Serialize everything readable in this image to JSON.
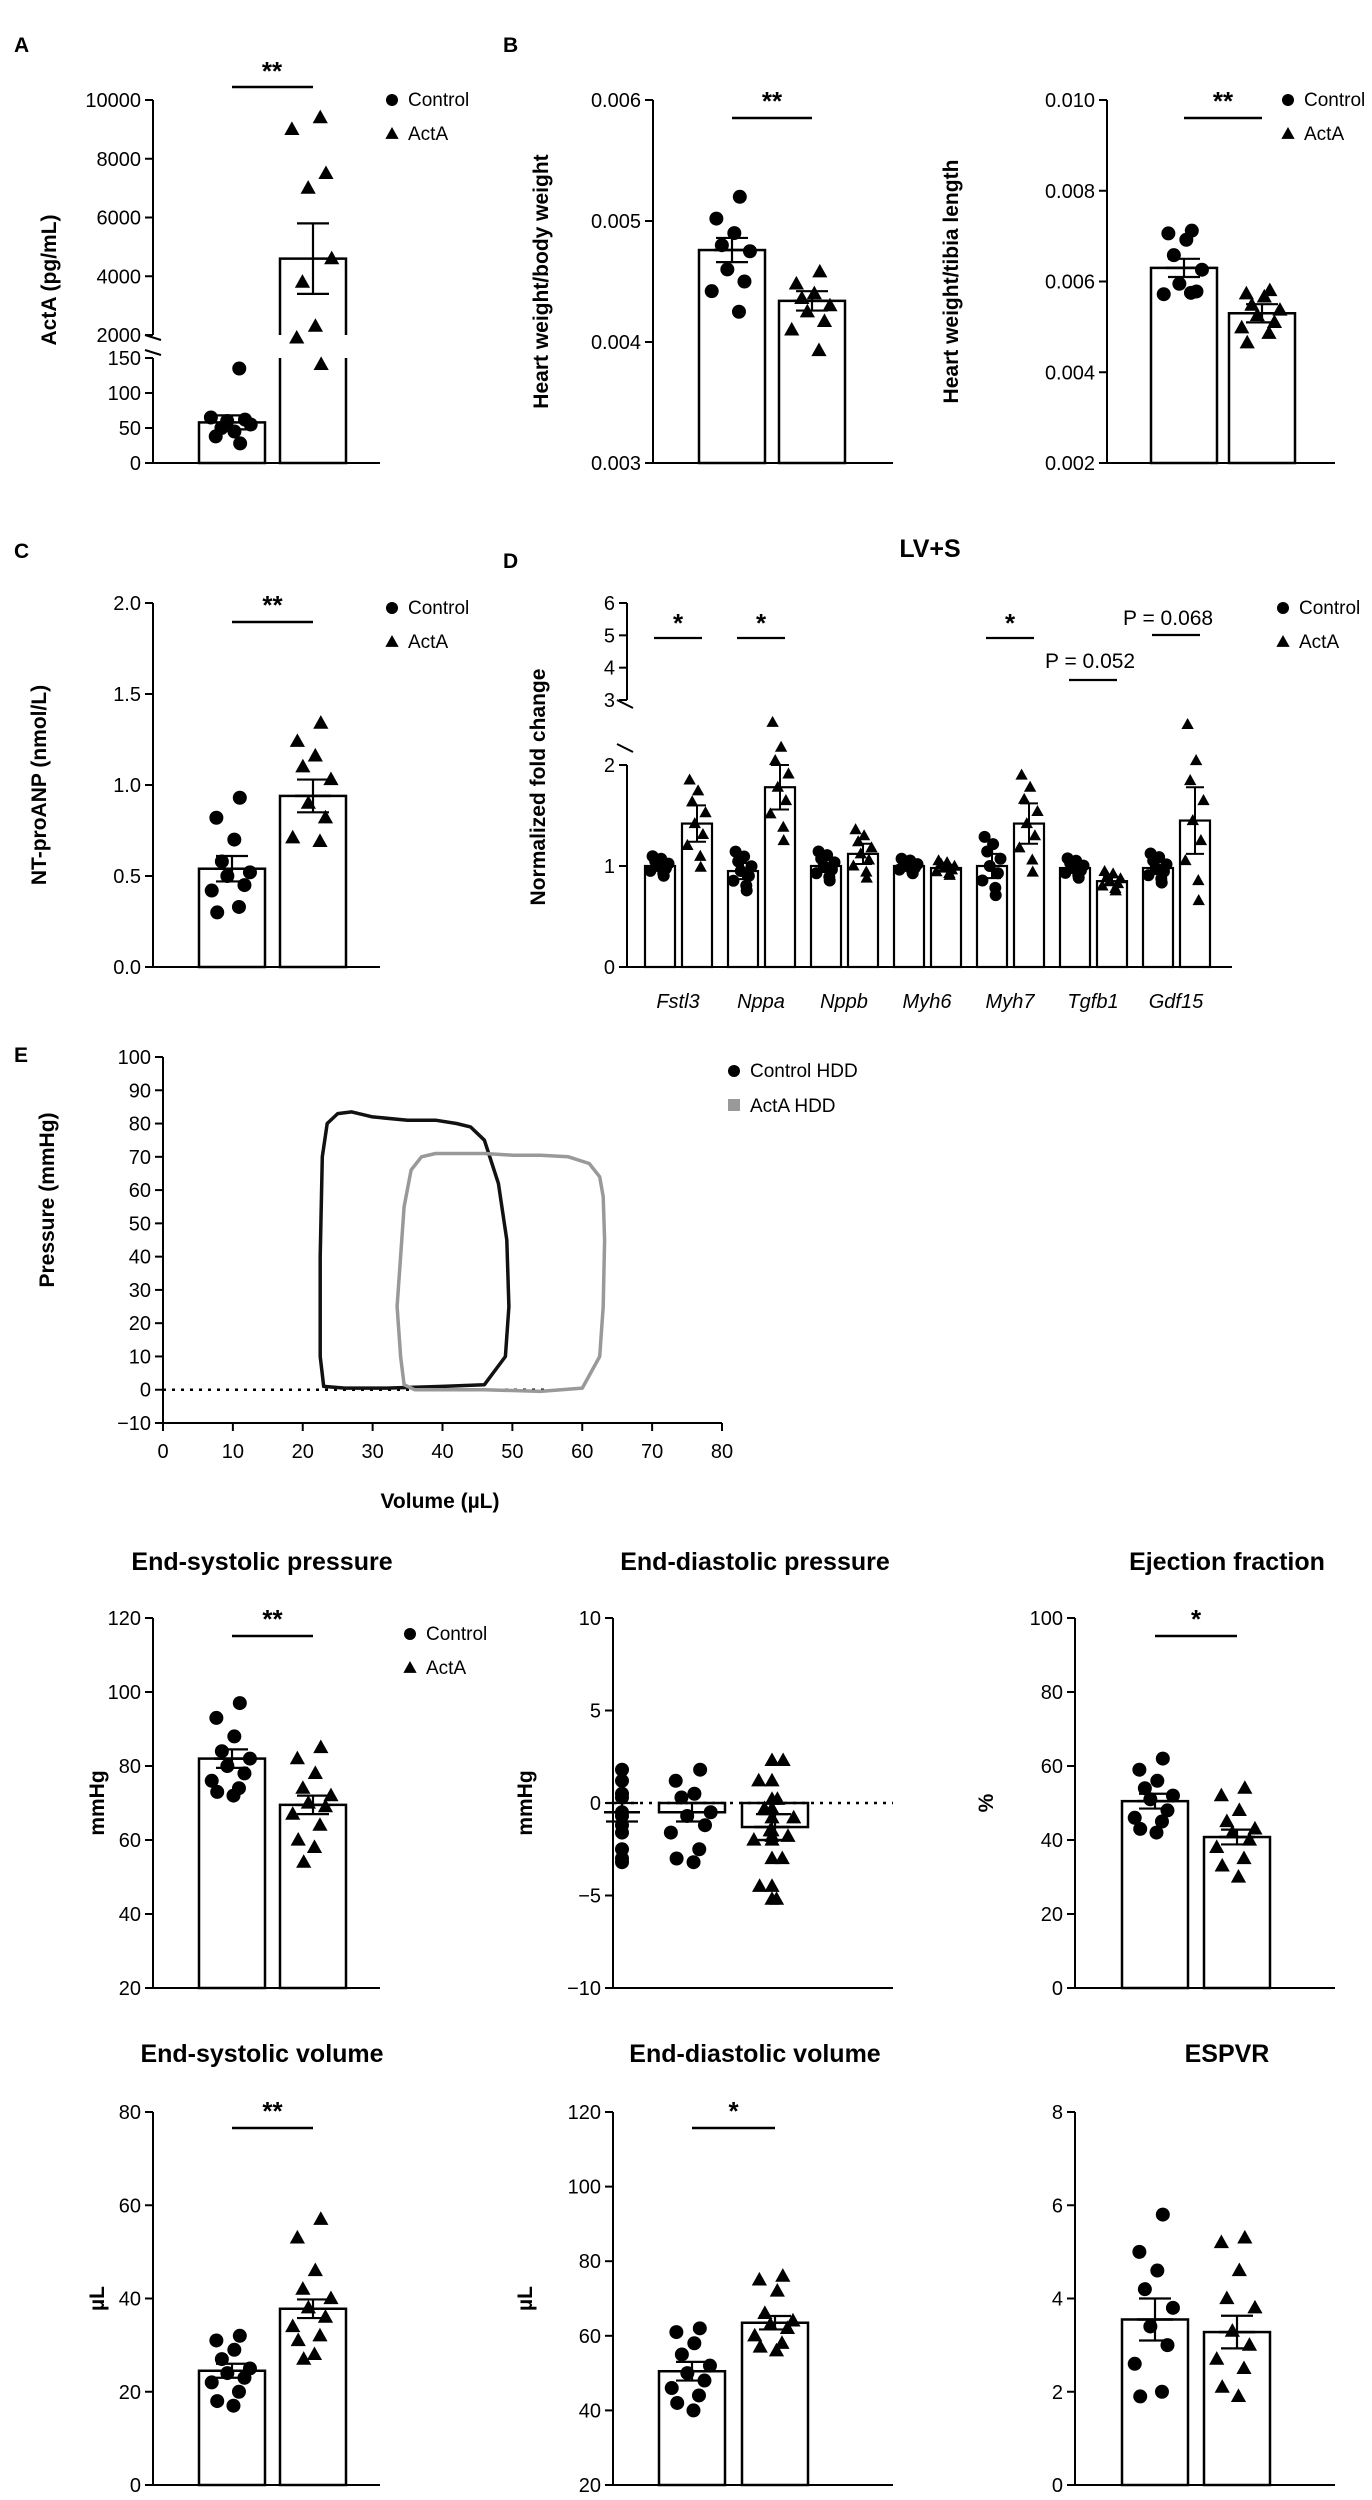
{
  "figure": {
    "background": "#ffffff",
    "ink": "#000000",
    "gray": "#999999"
  },
  "chart_data": [
    {
      "id": "A",
      "panel_label": "A",
      "type": "bar",
      "ylabel": "ActA (pg/mL)",
      "ylim": [
        0,
        10000
      ],
      "axis_break": true,
      "yticks_lower": [
        "0",
        "50",
        "100",
        "150"
      ],
      "yticks_upper": [
        "2000",
        "4000",
        "6000",
        "8000",
        "10000"
      ],
      "categories": [
        "Control",
        "ActA"
      ],
      "series": [
        {
          "name": "Control",
          "marker": "circle",
          "mean": 58,
          "sem": 10,
          "points": [
            28,
            38,
            45,
            50,
            55,
            60,
            62,
            65,
            135
          ]
        },
        {
          "name": "ActA",
          "marker": "triangle",
          "mean": 4600,
          "sem": 1200,
          "points": [
            1000,
            1900,
            2300,
            3800,
            4600,
            7000,
            7500,
            9000,
            9400
          ]
        }
      ],
      "significance": "**",
      "legend": [
        "Control",
        "ActA"
      ]
    },
    {
      "id": "B1",
      "panel_label": "B",
      "type": "bar",
      "ylabel": "Heart weight/body weight",
      "ylim": [
        0.003,
        0.006
      ],
      "yticks": [
        "0.003",
        "0.004",
        "0.005",
        "0.006"
      ],
      "categories": [
        "Control",
        "ActA"
      ],
      "series": [
        {
          "name": "Control",
          "marker": "circle",
          "mean": 0.00476,
          "sem": 0.0001,
          "points": [
            0.0052,
            0.00502,
            0.0049,
            0.0048,
            0.00475,
            0.0046,
            0.0045,
            0.00442,
            0.00425
          ]
        },
        {
          "name": "ActA",
          "marker": "triangle",
          "mean": 0.00434,
          "sem": 8e-05,
          "points": [
            0.00458,
            0.00448,
            0.0044,
            0.00436,
            0.0043,
            0.00425,
            0.00417,
            0.0041,
            0.00393
          ]
        }
      ],
      "significance": "**"
    },
    {
      "id": "B2",
      "panel_label": "",
      "type": "bar",
      "ylabel": "Heart weight/tibia length",
      "ylim": [
        0.002,
        0.01
      ],
      "yticks": [
        "0.002",
        "0.004",
        "0.006",
        "0.008",
        "0.010"
      ],
      "categories": [
        "Control",
        "ActA"
      ],
      "series": [
        {
          "name": "Control",
          "marker": "circle",
          "mean": 0.0063,
          "sem": 0.0002,
          "points": [
            0.00712,
            0.00706,
            0.00692,
            0.00658,
            0.00626,
            0.00595,
            0.00578,
            0.00572,
            0.00575
          ]
        },
        {
          "name": "ActA",
          "marker": "triangle",
          "mean": 0.0053,
          "sem": 0.0002,
          "points": [
            0.0058,
            0.00573,
            0.00566,
            0.00548,
            0.00537,
            0.00525,
            0.0051,
            0.00498,
            0.00486,
            0.00465
          ]
        }
      ],
      "significance": "**",
      "legend": [
        "Control",
        "ActA"
      ]
    },
    {
      "id": "C",
      "panel_label": "C",
      "type": "bar",
      "ylabel": "NT-proANP (nmol/L)",
      "ylim": [
        0,
        2
      ],
      "yticks": [
        "0.0",
        "0.5",
        "1.0",
        "1.5",
        "2.0"
      ],
      "categories": [
        "Control",
        "ActA"
      ],
      "series": [
        {
          "name": "Control",
          "marker": "circle",
          "mean": 0.54,
          "sem": 0.07,
          "points": [
            0.93,
            0.82,
            0.7,
            0.58,
            0.52,
            0.5,
            0.45,
            0.42,
            0.33,
            0.3
          ]
        },
        {
          "name": "ActA",
          "marker": "triangle",
          "mean": 0.94,
          "sem": 0.09,
          "points": [
            1.34,
            1.24,
            1.16,
            1.1,
            1.03,
            0.9,
            0.82,
            0.71,
            0.69
          ]
        }
      ],
      "significance": "**",
      "legend": [
        "Control",
        "ActA"
      ]
    },
    {
      "id": "D",
      "panel_label": "D",
      "type": "bar",
      "title": "LV+S",
      "ylabel": "Normalized fold change",
      "ylim": [
        0,
        6
      ],
      "axis_break": true,
      "yticks_lower": [
        "0",
        "1",
        "2"
      ],
      "yticks_upper": [
        "3",
        "4",
        "5",
        "6"
      ],
      "categories": [
        "Fstl3",
        "Nppa",
        "Nppb",
        "Myh6",
        "Myh7",
        "Tgfb1",
        "Gdf15"
      ],
      "series": [
        {
          "name": "Control",
          "marker": "circle",
          "values": [
            1.0,
            0.95,
            1.0,
            1.0,
            1.0,
            0.98,
            0.98
          ],
          "sem": [
            0.04,
            0.08,
            0.06,
            0.03,
            0.12,
            0.04,
            0.06
          ]
        },
        {
          "name": "ActA",
          "marker": "triangle",
          "values": [
            1.42,
            1.78,
            1.12,
            0.98,
            1.42,
            0.85,
            1.45
          ],
          "sem": [
            0.18,
            0.22,
            0.1,
            0.03,
            0.2,
            0.04,
            0.33
          ]
        }
      ],
      "annotations": [
        "*",
        "*",
        "*",
        "P = 0.052",
        "P = 0.068"
      ],
      "legend": [
        "Control",
        "ActA"
      ]
    },
    {
      "id": "E",
      "panel_label": "E",
      "type": "line",
      "xlabel": "Volume (µL)",
      "ylabel": "Pressure (mmHg)",
      "xlim": [
        0,
        80
      ],
      "ylim": [
        -10,
        100
      ],
      "xticks": [
        "0",
        "10",
        "20",
        "30",
        "40",
        "50",
        "60",
        "70",
        "80"
      ],
      "yticks": [
        "−10",
        "0",
        "10",
        "20",
        "30",
        "40",
        "50",
        "60",
        "70",
        "80",
        "90",
        "100"
      ],
      "series": [
        {
          "name": "Control HDD",
          "color": "#111111",
          "x": [
            49,
            49.5,
            49.2,
            48,
            46,
            44,
            42,
            39,
            35,
            30,
            27,
            25,
            23.5,
            22.8,
            22.5,
            22.5,
            23,
            26,
            32,
            40,
            46,
            49
          ],
          "y": [
            10,
            25,
            45,
            62,
            75,
            79,
            80,
            81,
            81,
            82,
            83.5,
            83,
            80,
            70,
            40,
            10,
            1,
            0.5,
            0.5,
            1,
            1.5,
            10
          ]
        },
        {
          "name": "ActA HDD",
          "color": "#999999",
          "x": [
            62.5,
            63,
            63.2,
            63,
            62.5,
            61,
            58,
            54,
            50,
            46,
            42,
            39,
            37,
            35.5,
            34.5,
            34,
            33.5,
            34,
            34.5,
            36,
            40,
            46,
            54,
            60,
            62.5
          ],
          "y": [
            10,
            25,
            45,
            58,
            64,
            68,
            70,
            70.5,
            70.5,
            71,
            71,
            71,
            70,
            66,
            55,
            40,
            25,
            10,
            1.5,
            0,
            0,
            0,
            -0.5,
            0.5,
            10
          ]
        }
      ],
      "legend": [
        "Control HDD",
        "ActA HDD"
      ]
    },
    {
      "id": "F1",
      "type": "bar",
      "title": "End-systolic pressure",
      "ylabel": "mmHg",
      "ylim": [
        20,
        120
      ],
      "yticks": [
        "20",
        "40",
        "60",
        "80",
        "100",
        "120"
      ],
      "categories": [
        "Control",
        "ActA"
      ],
      "series": [
        {
          "name": "Control",
          "marker": "circle",
          "mean": 82,
          "sem": 2.5,
          "points": [
            97,
            93,
            88,
            84,
            82,
            80,
            78,
            76,
            74,
            73,
            72
          ]
        },
        {
          "name": "ActA",
          "marker": "triangle",
          "mean": 69.5,
          "sem": 2.5,
          "points": [
            85,
            82,
            78,
            74,
            72,
            70,
            69,
            67,
            64,
            60,
            58,
            54
          ]
        }
      ],
      "significance": "**",
      "legend": [
        "Control",
        "ActA"
      ]
    },
    {
      "id": "F2",
      "type": "bar",
      "title": "End-diastolic pressure",
      "ylabel": "mmHg",
      "ylim": [
        -10,
        10
      ],
      "yticks": [
        "−10",
        "−5",
        "0",
        "5",
        "10"
      ],
      "categories": [
        "Control",
        "ActA"
      ],
      "series": [
        {
          "name": "Control",
          "marker": "circle",
          "mean": -0.5,
          "sem": 0.5,
          "points": [
            1.8,
            1.2,
            0.5,
            0.3,
            -0.5,
            -0.7,
            -1.2,
            -1.6,
            -2.5,
            -3.0,
            -3.2
          ]
        },
        {
          "name": "ActA",
          "marker": "triangle",
          "mean": -1.3,
          "sem": 0.7,
          "points": [
            2.3,
            1.2,
            0.2,
            -0.3,
            -0.8,
            -1.5,
            -1.8,
            -2.0,
            -3.0,
            -4.5,
            -5.2
          ]
        }
      ],
      "zero_line": true
    },
    {
      "id": "F3",
      "type": "bar",
      "title": "Ejection fraction",
      "ylabel": "%",
      "ylim": [
        0,
        100
      ],
      "yticks": [
        "0",
        "20",
        "40",
        "60",
        "80",
        "100"
      ],
      "categories": [
        "Control",
        "ActA"
      ],
      "series": [
        {
          "name": "Control",
          "marker": "circle",
          "mean": 50.5,
          "sem": 2,
          "points": [
            62,
            59,
            56,
            54,
            52,
            51,
            48,
            46,
            45,
            43,
            42
          ]
        },
        {
          "name": "ActA",
          "marker": "triangle",
          "mean": 40.8,
          "sem": 2,
          "points": [
            54,
            52,
            48,
            45,
            43,
            42,
            40,
            38,
            35,
            33,
            30
          ]
        }
      ],
      "significance": "*"
    },
    {
      "id": "G1",
      "type": "bar",
      "title": "End-systolic volume",
      "ylabel": "µL",
      "ylim": [
        0,
        80
      ],
      "yticks": [
        "0",
        "20",
        "40",
        "60",
        "80"
      ],
      "categories": [
        "Control",
        "ActA"
      ],
      "series": [
        {
          "name": "Control",
          "marker": "circle",
          "mean": 24.5,
          "sem": 1.5,
          "points": [
            32,
            31,
            29,
            27,
            25,
            24,
            23,
            22,
            20,
            18,
            17
          ]
        },
        {
          "name": "ActA",
          "marker": "triangle",
          "mean": 37.8,
          "sem": 2,
          "points": [
            57,
            53,
            46,
            42,
            40,
            38,
            36,
            34,
            32,
            31,
            28,
            27
          ]
        }
      ],
      "significance": "**"
    },
    {
      "id": "G2",
      "type": "bar",
      "title": "End-diastolic volume",
      "ylabel": "µL",
      "ylim": [
        20,
        120
      ],
      "yticks": [
        "20",
        "40",
        "60",
        "80",
        "100",
        "120"
      ],
      "categories": [
        "Control",
        "ActA"
      ],
      "series": [
        {
          "name": "Control",
          "marker": "circle",
          "mean": 50.5,
          "sem": 2.5,
          "points": [
            62,
            61,
            58,
            55,
            52,
            50,
            48,
            46,
            44,
            42,
            40
          ]
        },
        {
          "name": "ActA",
          "marker": "triangle",
          "mean": 63.5,
          "sem": 1.8,
          "points": [
            76,
            75,
            72,
            66,
            64,
            63,
            62,
            60,
            58,
            57,
            56
          ]
        }
      ],
      "significance": "*"
    },
    {
      "id": "G3",
      "type": "bar",
      "title": "ESPVR",
      "ylabel": "",
      "ylim": [
        0,
        8
      ],
      "yticks": [
        "0",
        "2",
        "4",
        "6",
        "8"
      ],
      "categories": [
        "Control",
        "ActA"
      ],
      "series": [
        {
          "name": "Control",
          "marker": "circle",
          "mean": 3.55,
          "sem": 0.45,
          "points": [
            5.8,
            5.0,
            4.6,
            4.2,
            3.8,
            3.4,
            3.0,
            2.6,
            2.0,
            1.9
          ]
        },
        {
          "name": "ActA",
          "marker": "triangle",
          "mean": 3.28,
          "sem": 0.35,
          "points": [
            5.3,
            5.2,
            4.6,
            4.0,
            3.8,
            3.3,
            3.0,
            2.7,
            2.5,
            2.1,
            1.9
          ]
        }
      ]
    }
  ]
}
